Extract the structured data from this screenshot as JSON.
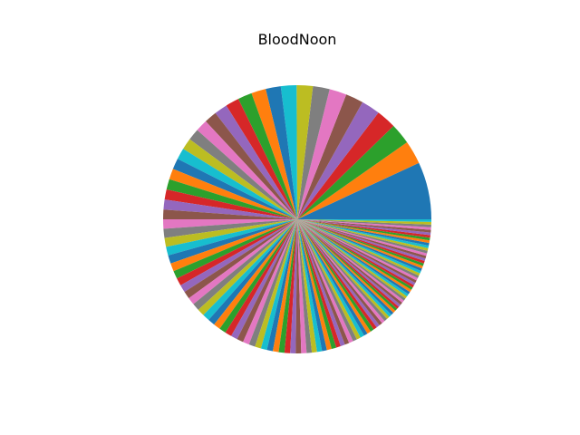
{
  "chart_data": {
    "type": "pie",
    "title": "BloodNoon",
    "legend": "none",
    "start_angle_deg": 0,
    "direction": "counterclockwise",
    "colors": [
      "#1f77b4",
      "#ff7f0e",
      "#2ca02c",
      "#d62728",
      "#9467bd",
      "#8c564b",
      "#e377c2",
      "#7f7f7f",
      "#bcbd22",
      "#17becf"
    ],
    "values": [
      11.0,
      4.5,
      4.0,
      3.8,
      3.6,
      3.4,
      3.3,
      3.2,
      3.1,
      3.0,
      2.9,
      2.8,
      2.7,
      2.6,
      2.5,
      2.4,
      2.3,
      2.25,
      2.2,
      2.15,
      2.1,
      2.05,
      2.0,
      1.95,
      1.9,
      1.85,
      1.8,
      1.75,
      1.7,
      1.65,
      1.6,
      1.55,
      1.5,
      1.48,
      1.46,
      1.44,
      1.42,
      1.4,
      1.38,
      1.36,
      1.34,
      1.32,
      1.3,
      1.28,
      1.26,
      1.24,
      1.22,
      1.2,
      1.18,
      1.16,
      1.14,
      1.12,
      1.1,
      1.08,
      1.06,
      1.04,
      1.02,
      1.0,
      0.98,
      0.96,
      0.94,
      0.92,
      0.9,
      0.88,
      0.86,
      0.84,
      0.82,
      0.8,
      0.78,
      0.76,
      0.74,
      0.72,
      0.7,
      0.68,
      0.66,
      0.64,
      0.62,
      0.6,
      0.58,
      0.56,
      0.54,
      0.52,
      0.5,
      0.5,
      0.5,
      0.5,
      0.5,
      0.5,
      0.5,
      0.5,
      0.5,
      0.5,
      0.5,
      0.5,
      0.5,
      0.5,
      0.5,
      0.5,
      0.5,
      0.5,
      0.5,
      0.5,
      0.5,
      0.5,
      0.5,
      0.5,
      0.5,
      0.5,
      0.5,
      0.5,
      0.5,
      0.5,
      0.5,
      0.5,
      0.5,
      0.5,
      0.5,
      0.5,
      0.5,
      0.5
    ]
  }
}
